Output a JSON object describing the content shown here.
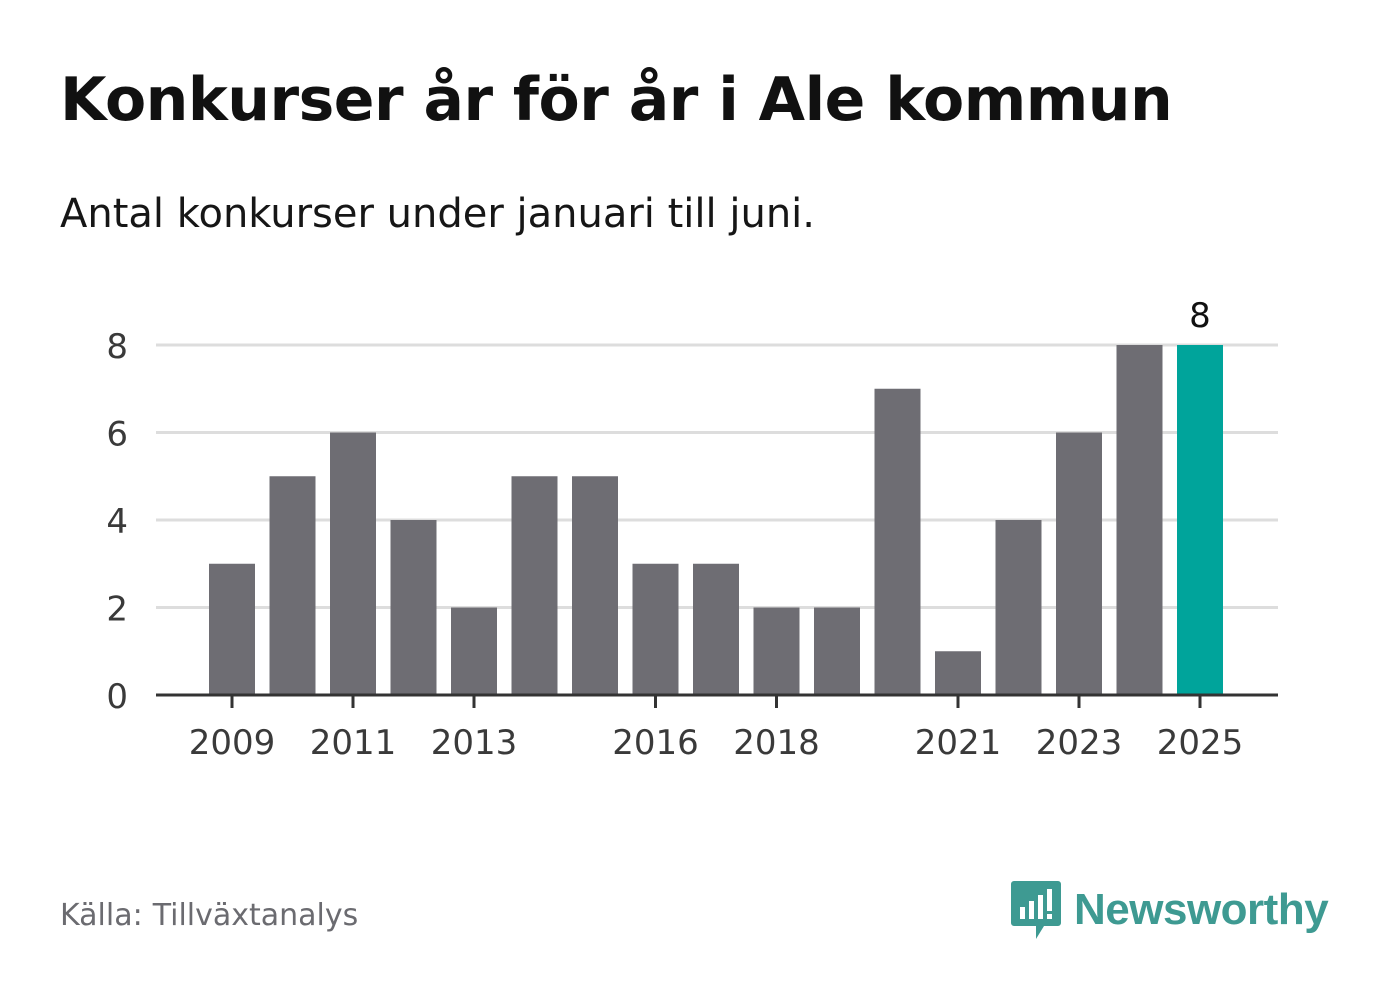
{
  "header": {
    "title": "Konkurser år för år i Ale kommun",
    "subtitle": "Antal konkurser under januari till juni."
  },
  "footer": {
    "source_label": "Källa:",
    "source_value": "Tillväxtanalys",
    "brand_name": "Newsworthy"
  },
  "colors": {
    "bar": "#6e6d73",
    "highlight": "#00a49b",
    "grid": "#dddddd",
    "axis": "#333333",
    "tick_text": "#3a3a3a",
    "brand": "#3e9a92"
  },
  "chart_data": {
    "type": "bar",
    "categories": [
      "2009",
      "2010",
      "2011",
      "2012",
      "2013",
      "2014",
      "2015",
      "2016",
      "2017",
      "2018",
      "2019",
      "2020",
      "2021",
      "2022",
      "2023",
      "2024",
      "2025"
    ],
    "values": [
      3,
      5,
      6,
      4,
      2,
      5,
      5,
      3,
      3,
      2,
      2,
      7,
      1,
      4,
      6,
      8,
      8
    ],
    "highlight_index": 16,
    "data_labels": [
      {
        "index": 16,
        "text": "8"
      }
    ],
    "x_tick_labels": [
      "2009",
      "2011",
      "2013",
      "2016",
      "2018",
      "2021",
      "2023",
      "2025"
    ],
    "y_ticks": [
      0,
      2,
      4,
      6,
      8
    ],
    "ylim": [
      0,
      8
    ],
    "grid": true,
    "legend": "none",
    "xlabel": "",
    "ylabel": ""
  }
}
